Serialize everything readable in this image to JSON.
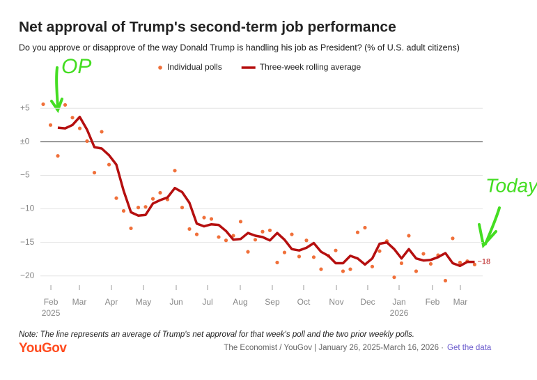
{
  "chart_data": {
    "type": "line",
    "title": "Net approval of Trump's second-term job performance",
    "subtitle": "Do you approve or disapprove of the way Donald Trump is handling his job as President? (% of U.S. adult citizens)",
    "note": "Note: The line represents an average of Trump's net approval for that week's poll and the two prior weekly polls.",
    "logo": "YouGov",
    "source": "The Economist / YouGov | January 26, 2025-March 16, 2026 ·",
    "link": "Get the data",
    "annotations": [
      {
        "text": "OP",
        "color": "#44dd22"
      },
      {
        "text": "Today",
        "color": "#44dd22"
      }
    ],
    "xlim": [
      -0.67,
      60.1
    ],
    "xticks": [
      {
        "value": 1.05,
        "label": "Feb"
      },
      {
        "value": 4.95,
        "label": "Mar"
      },
      {
        "value": 9.33,
        "label": "Apr"
      },
      {
        "value": 13.71,
        "label": "May"
      },
      {
        "value": 18.19,
        "label": "Jun"
      },
      {
        "value": 22.48,
        "label": "Jul"
      },
      {
        "value": 26.95,
        "label": "Aug"
      },
      {
        "value": 31.33,
        "label": "Sep"
      },
      {
        "value": 35.62,
        "label": "Oct"
      },
      {
        "value": 40.1,
        "label": "Nov"
      },
      {
        "value": 44.38,
        "label": "Dec"
      },
      {
        "value": 48.67,
        "label": "Jan"
      },
      {
        "value": 53.24,
        "label": "Feb"
      },
      {
        "value": 57.05,
        "label": "Mar"
      }
    ],
    "year_labels": [
      {
        "value": 1.05,
        "label": "2025"
      },
      {
        "value": 48.67,
        "label": "2026"
      }
    ],
    "ylim": [
      -22,
      7
    ],
    "yticks": [
      {
        "value": 5,
        "label": "+5"
      },
      {
        "value": 0,
        "label": "±0"
      },
      {
        "value": -5,
        "label": "−5"
      },
      {
        "value": -10,
        "label": "−10"
      },
      {
        "value": -15,
        "label": "−15"
      },
      {
        "value": -20,
        "label": "−20"
      }
    ],
    "grid": true,
    "series": [
      {
        "name": "Individual polls",
        "style": "dot",
        "color": "#f0703a",
        "x": [
          0,
          1,
          2,
          3,
          4,
          5,
          6,
          7,
          8,
          9,
          10,
          11,
          12,
          13,
          14,
          15,
          16,
          17,
          18,
          19,
          20,
          21,
          22,
          23,
          24,
          25,
          26,
          27,
          28,
          29,
          30,
          31,
          32,
          33,
          34,
          35,
          36,
          37,
          38,
          39,
          40,
          41,
          42,
          43,
          44,
          45,
          46,
          47,
          48,
          49,
          50,
          51,
          52,
          53,
          54,
          55,
          56,
          57,
          58,
          59
        ],
        "values": [
          5.6,
          2.5,
          -2.1,
          5.5,
          3.6,
          2.0,
          0.1,
          -4.6,
          1.5,
          -3.4,
          -8.4,
          -10.3,
          -12.9,
          -9.8,
          -9.7,
          -8.5,
          -7.6,
          -8.6,
          -4.3,
          -9.8,
          -13.0,
          -13.8,
          -11.3,
          -11.5,
          -14.2,
          -14.7,
          -14.0,
          -11.9,
          -16.4,
          -14.6,
          -13.4,
          -13.2,
          -18.0,
          -16.5,
          -13.8,
          -17.1,
          -14.7,
          -17.2,
          -19.0,
          -17.0,
          -16.2,
          -19.3,
          -19.0,
          -13.5,
          -12.8,
          -18.6,
          -16.3,
          -14.8,
          -20.2,
          -18.1,
          -14.0,
          -19.3,
          -16.7,
          -18.2,
          -16.9,
          -20.7,
          -14.4,
          -18.0,
          -17.8,
          -18.3
        ]
      },
      {
        "name": "Three-week rolling average",
        "style": "line",
        "color": "#b50f0f",
        "end_label": "−18",
        "x": [
          2,
          3,
          4,
          5,
          6,
          7,
          8,
          9,
          10,
          11,
          12,
          13,
          14,
          15,
          16,
          17,
          18,
          19,
          20,
          21,
          22,
          23,
          24,
          25,
          26,
          27,
          28,
          29,
          30,
          31,
          32,
          33,
          34,
          35,
          36,
          37,
          38,
          39,
          40,
          41,
          42,
          43,
          44,
          45,
          46,
          47,
          48,
          49,
          50,
          51,
          52,
          53,
          54,
          55,
          56,
          57,
          58,
          59
        ],
        "values": [
          2.1,
          2.0,
          2.5,
          3.7,
          1.8,
          -0.8,
          -1.0,
          -2.0,
          -3.4,
          -7.3,
          -10.5,
          -11.0,
          -10.9,
          -9.2,
          -8.7,
          -8.3,
          -6.9,
          -7.5,
          -9.1,
          -12.2,
          -12.6,
          -12.3,
          -12.4,
          -13.3,
          -14.6,
          -14.5,
          -13.6,
          -14.0,
          -14.2,
          -14.7,
          -13.6,
          -14.6,
          -16.0,
          -16.2,
          -15.8,
          -15.1,
          -16.4,
          -17.0,
          -18.1,
          -18.1,
          -17.0,
          -17.4,
          -18.3,
          -17.4,
          -15.2,
          -15.0,
          -16.0,
          -17.4,
          -16.0,
          -17.4,
          -17.7,
          -17.6,
          -17.2,
          -16.6,
          -18.1,
          -18.5,
          -17.9,
          -17.9
        ]
      }
    ]
  }
}
